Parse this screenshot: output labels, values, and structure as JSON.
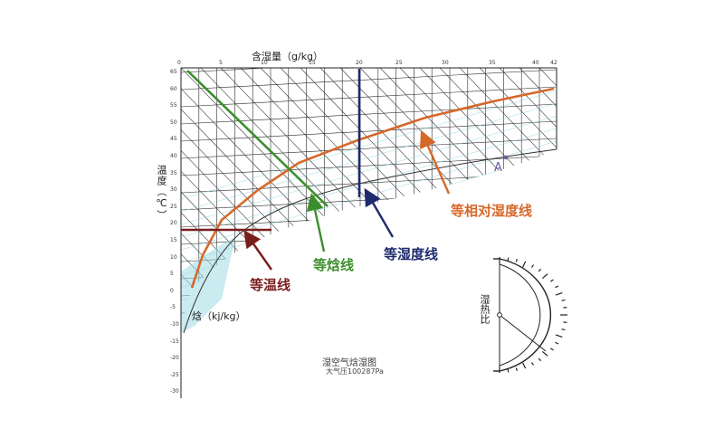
{
  "chart": {
    "top_axis_title": "含湿量（g/kg）",
    "left_axis_title": "温度（℃）",
    "enthalpy_title": "焓（kj/kg）",
    "caption": "湿空气焓湿图",
    "pressure": "大气压100287Pa",
    "top_ticks": [
      "0",
      "5",
      "10",
      "15",
      "20",
      "25",
      "30",
      "35",
      "40",
      "42"
    ],
    "left_ticks": [
      "65",
      "60",
      "55",
      "50",
      "45",
      "40",
      "35",
      "30",
      "25",
      "20",
      "15",
      "10",
      "5",
      "0",
      "-5",
      "-10",
      "-15",
      "-20",
      "-25",
      "-30"
    ]
  },
  "callouts": {
    "relative_humidity": "等相对湿度线",
    "moisture": "等湿度线",
    "enthalpy": "等焓线",
    "temperature": "等温线"
  },
  "point_label": "A",
  "protractor_label": "湿热比",
  "colors": {
    "relative_humidity": "#d6682a",
    "moisture": "#1e2a6e",
    "enthalpy": "#3a8f2a",
    "temperature": "#7a1d1d",
    "grid": "#2a2a2a",
    "fog": "#7fd0dc"
  }
}
